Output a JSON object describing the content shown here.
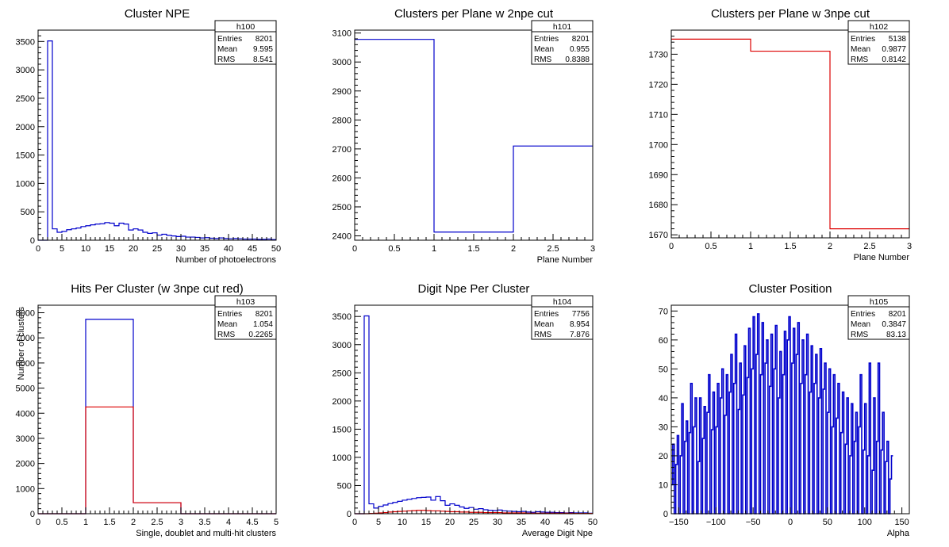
{
  "colors": {
    "blue": "#0000cc",
    "red": "#dd0000",
    "axis": "#000000",
    "background": "#ffffff"
  },
  "chart_data": [
    {
      "type": "histogram",
      "title": "Cluster NPE",
      "xlabel": "Number of photoelectrons",
      "ylabel": "",
      "xlim": [
        0,
        50
      ],
      "ylim": [
        0,
        3700
      ],
      "xticks": [
        0,
        5,
        10,
        15,
        20,
        25,
        30,
        35,
        40,
        45,
        50
      ],
      "yticks": [
        0,
        500,
        1000,
        1500,
        2000,
        2500,
        3000,
        3500
      ],
      "stats": {
        "name": "h100",
        "rows": [
          [
            "Entries",
            "8201"
          ],
          [
            "Mean",
            "9.595"
          ],
          [
            "RMS",
            "8.541"
          ]
        ]
      },
      "series": [
        {
          "color": "blue",
          "bin_width": 1,
          "x_start": 0,
          "values": [
            0,
            0,
            3510,
            200,
            140,
            155,
            185,
            200,
            215,
            240,
            255,
            270,
            285,
            290,
            310,
            300,
            255,
            300,
            285,
            180,
            200,
            180,
            140,
            120,
            130,
            90,
            105,
            85,
            75,
            65,
            70,
            55,
            55,
            50,
            40,
            45,
            35,
            30,
            40,
            30,
            25,
            30,
            25,
            20,
            20,
            20,
            15,
            15,
            20,
            10
          ]
        }
      ]
    },
    {
      "type": "histogram",
      "title": "Clusters per Plane w 2npe cut",
      "xlabel": "Plane Number",
      "ylabel": "",
      "xlim": [
        0,
        3
      ],
      "ylim": [
        2385,
        3110
      ],
      "xticks": [
        0,
        0.5,
        1,
        1.5,
        2,
        2.5,
        3
      ],
      "yticks": [
        2400,
        2500,
        2600,
        2700,
        2800,
        2900,
        3000,
        3100
      ],
      "stats": {
        "name": "h101",
        "rows": [
          [
            "Entries",
            "8201"
          ],
          [
            "Mean",
            "0.955"
          ],
          [
            "RMS",
            "0.8388"
          ]
        ]
      },
      "series": [
        {
          "color": "blue",
          "bin_width": 1,
          "x_start": 0,
          "values": [
            3078,
            2413,
            2710
          ]
        }
      ]
    },
    {
      "type": "histogram",
      "title": "Clusters per Plane w 3npe cut",
      "xlabel": "Plane Number",
      "ylabel": "",
      "xlim": [
        0,
        3
      ],
      "ylim": [
        1669,
        1738
      ],
      "xticks": [
        0,
        0.5,
        1,
        1.5,
        2,
        2.5,
        3
      ],
      "yticks": [
        1670,
        1680,
        1690,
        1700,
        1710,
        1720,
        1730
      ],
      "stats": {
        "name": "h102",
        "rows": [
          [
            "Entries",
            "5138"
          ],
          [
            "Mean",
            "0.9877"
          ],
          [
            "RMS",
            "0.8142"
          ]
        ]
      },
      "series": [
        {
          "color": "red",
          "bin_width": 1,
          "x_start": 0,
          "values": [
            1735,
            1731,
            1672
          ]
        }
      ]
    },
    {
      "type": "histogram",
      "title": "Hits Per Cluster (w 3npe cut red)",
      "xlabel": "Single, doublet and multi-hit clusters",
      "ylabel": "Number of clusters",
      "xlim": [
        0,
        5
      ],
      "ylim": [
        0,
        8300
      ],
      "xticks": [
        0,
        0.5,
        1,
        1.5,
        2,
        2.5,
        3,
        3.5,
        4,
        4.5,
        5
      ],
      "yticks": [
        0,
        1000,
        2000,
        3000,
        4000,
        5000,
        6000,
        7000,
        8000
      ],
      "stats": {
        "name": "h103",
        "rows": [
          [
            "Entries",
            "8201"
          ],
          [
            "Mean",
            "1.054"
          ],
          [
            "RMS",
            "0.2265"
          ]
        ]
      },
      "series": [
        {
          "color": "blue",
          "bin_width": 1,
          "x_start": 0,
          "values": [
            0,
            7740,
            440,
            0,
            0
          ]
        },
        {
          "color": "red",
          "bin_width": 1,
          "x_start": 0,
          "values": [
            0,
            4250,
            440,
            0,
            0
          ]
        }
      ]
    },
    {
      "type": "histogram",
      "title": "Digit Npe Per Cluster",
      "xlabel": "Average Digit Npe",
      "ylabel": "",
      "xlim": [
        0,
        50
      ],
      "ylim": [
        0,
        3700
      ],
      "xticks": [
        0,
        5,
        10,
        15,
        20,
        25,
        30,
        35,
        40,
        45,
        50
      ],
      "yticks": [
        0,
        500,
        1000,
        1500,
        2000,
        2500,
        3000,
        3500
      ],
      "stats": {
        "name": "h104",
        "rows": [
          [
            "Entries",
            "7756"
          ],
          [
            "Mean",
            "8.954"
          ],
          [
            "RMS",
            "7.876"
          ]
        ]
      },
      "series": [
        {
          "color": "blue",
          "bin_width": 1,
          "x_start": 0,
          "values": [
            0,
            0,
            3510,
            175,
            100,
            130,
            155,
            180,
            200,
            220,
            240,
            255,
            270,
            285,
            290,
            295,
            240,
            305,
            230,
            150,
            175,
            150,
            120,
            95,
            110,
            80,
            90,
            70,
            60,
            55,
            65,
            50,
            45,
            40,
            35,
            40,
            30,
            25,
            35,
            30,
            25,
            25,
            20,
            20,
            15,
            20,
            15,
            15,
            15,
            10
          ]
        },
        {
          "color": "red",
          "bin_width": 1,
          "x_start": 0,
          "values": [
            0,
            0,
            0,
            5,
            10,
            15,
            20,
            30,
            35,
            40,
            45,
            50,
            55,
            60,
            60,
            55,
            50,
            50,
            45,
            40,
            35,
            35,
            30,
            30,
            25,
            25,
            25,
            20,
            20,
            20,
            20,
            15,
            15,
            15,
            15,
            15,
            10,
            10,
            10,
            10,
            10,
            10,
            10,
            10,
            10,
            10,
            5,
            5,
            5,
            5
          ]
        }
      ]
    },
    {
      "type": "histogram",
      "title": "Cluster Position",
      "xlabel": "Alpha",
      "ylabel": "",
      "xlim": [
        -160,
        160
      ],
      "ylim": [
        0,
        72
      ],
      "xticks": [
        -150,
        -100,
        -50,
        0,
        50,
        100,
        150
      ],
      "yticks": [
        0,
        10,
        20,
        30,
        40,
        50,
        60,
        70
      ],
      "stats": {
        "name": "h105",
        "rows": [
          [
            "Entries",
            "8201"
          ],
          [
            "Mean",
            "0.3847"
          ],
          [
            "RMS",
            "83.13"
          ]
        ]
      },
      "series": [
        {
          "color": "blue",
          "bin_width": 2,
          "x_start": -160,
          "values": [
            10,
            24,
            0,
            17,
            27,
            0,
            20,
            38,
            0,
            25,
            32,
            0,
            28,
            45,
            0,
            30,
            40,
            0,
            18,
            40,
            0,
            26,
            37,
            0,
            35,
            48,
            0,
            29,
            42,
            0,
            30,
            45,
            0,
            40,
            50,
            0,
            34,
            48,
            0,
            42,
            55,
            0,
            45,
            62,
            0,
            36,
            52,
            0,
            41,
            58,
            0,
            47,
            64,
            0,
            50,
            68,
            0,
            55,
            69,
            0,
            48,
            66,
            0,
            52,
            60,
            0,
            44,
            62,
            0,
            50,
            65,
            0,
            40,
            56,
            0,
            48,
            63,
            0,
            60,
            68,
            0,
            52,
            64,
            0,
            55,
            66,
            0,
            45,
            60,
            0,
            48,
            62,
            0,
            42,
            58,
            0,
            45,
            55,
            0,
            40,
            57,
            0,
            43,
            52,
            0,
            35,
            50,
            0,
            30,
            48,
            0,
            33,
            45,
            0,
            28,
            42,
            0,
            24,
            40,
            0,
            20,
            38,
            0,
            25,
            35,
            0,
            30,
            48,
            0,
            22,
            38,
            0,
            20,
            52,
            0,
            15,
            40,
            0,
            25,
            52,
            0,
            22,
            35,
            0,
            18,
            25,
            0,
            12,
            20
          ]
        }
      ]
    }
  ]
}
